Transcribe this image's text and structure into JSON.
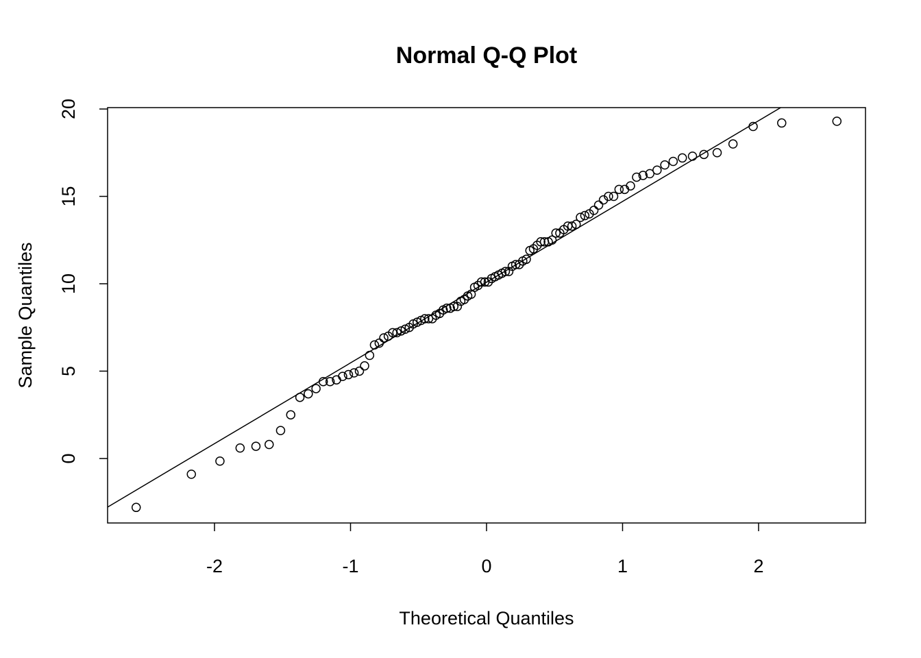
{
  "chart_data": {
    "type": "scatter",
    "title": "Normal Q-Q Plot",
    "x_label": "Theoretical Quantiles",
    "y_label": "Sample Quantiles",
    "x": [
      -2.5758,
      -2.1701,
      -1.96,
      -1.8119,
      -1.6954,
      -1.5982,
      -1.5141,
      -1.4395,
      -1.3722,
      -1.3106,
      -1.2536,
      -1.2004,
      -1.1503,
      -1.1031,
      -1.0581,
      -1.0152,
      -0.9741,
      -0.9346,
      -0.8965,
      -0.8596,
      -0.8239,
      -0.7892,
      -0.7554,
      -0.7225,
      -0.6903,
      -0.6588,
      -0.628,
      -0.5978,
      -0.5681,
      -0.5388,
      -0.5101,
      -0.4817,
      -0.4538,
      -0.4261,
      -0.3989,
      -0.3719,
      -0.3451,
      -0.3186,
      -0.2924,
      -0.2663,
      -0.2404,
      -0.2147,
      -0.1891,
      -0.1637,
      -0.1383,
      -0.113,
      -0.0878,
      -0.0627,
      -0.0376,
      -0.0125,
      0.0125,
      0.0376,
      0.0627,
      0.0878,
      0.113,
      0.1383,
      0.1637,
      0.1891,
      0.2147,
      0.2404,
      0.2663,
      0.2924,
      0.3186,
      0.3451,
      0.3719,
      0.3989,
      0.4261,
      0.4538,
      0.4817,
      0.5101,
      0.5388,
      0.5681,
      0.5978,
      0.628,
      0.6588,
      0.6903,
      0.7225,
      0.7554,
      0.7892,
      0.8239,
      0.8596,
      0.8965,
      0.9346,
      0.9741,
      1.0152,
      1.0581,
      1.1031,
      1.1503,
      1.2004,
      1.2536,
      1.3106,
      1.3722,
      1.4395,
      1.5141,
      1.5982,
      1.6954,
      1.8119,
      1.96,
      2.1701,
      2.5758
    ],
    "values": [
      -2.8,
      -0.9,
      -0.15,
      0.6,
      0.7,
      0.8,
      1.6,
      2.5,
      3.5,
      3.7,
      4.0,
      4.4,
      4.4,
      4.5,
      4.7,
      4.8,
      4.9,
      5.0,
      5.3,
      5.9,
      6.5,
      6.6,
      6.9,
      7.0,
      7.2,
      7.2,
      7.3,
      7.4,
      7.5,
      7.7,
      7.8,
      7.9,
      8.0,
      8.0,
      8.0,
      8.2,
      8.3,
      8.5,
      8.6,
      8.6,
      8.7,
      8.7,
      9.0,
      9.1,
      9.3,
      9.4,
      9.8,
      9.9,
      10.1,
      10.1,
      10.1,
      10.3,
      10.4,
      10.5,
      10.6,
      10.7,
      10.7,
      11.0,
      11.1,
      11.1,
      11.3,
      11.4,
      11.9,
      12.0,
      12.2,
      12.4,
      12.4,
      12.4,
      12.5,
      12.9,
      12.9,
      13.1,
      13.3,
      13.3,
      13.4,
      13.8,
      13.9,
      14.0,
      14.2,
      14.5,
      14.8,
      15.0,
      15.0,
      15.4,
      15.4,
      15.6,
      16.1,
      16.2,
      16.3,
      16.5,
      16.8,
      17.0,
      17.2,
      17.3,
      17.4,
      17.5,
      18.0,
      19.0,
      19.2,
      19.3
    ],
    "line": {
      "intercept": 10.09,
      "slope": 4.62
    },
    "color": "#000000",
    "xlim": [
      -2.786,
      2.786
    ],
    "xticks": [
      -2,
      -1,
      0,
      1,
      2
    ],
    "ylim": [
      -3.69,
      20.08
    ],
    "yticks": [
      0,
      5,
      10,
      15,
      20
    ]
  }
}
